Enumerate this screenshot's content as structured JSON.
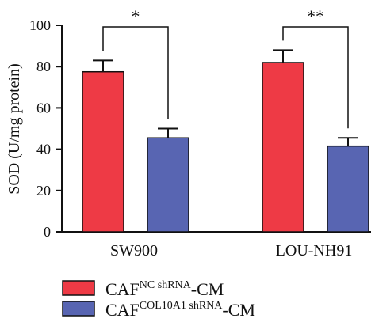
{
  "chart_data": {
    "type": "bar",
    "categories": [
      "SW900",
      "LOU-NH91"
    ],
    "series": [
      {
        "name": "CAF NC shRNA -CM",
        "label_base": "CAF",
        "label_sup": "NC shRNA",
        "label_suffix": "-CM",
        "values": [
          77.5,
          82
        ],
        "errors": [
          5.5,
          6
        ]
      },
      {
        "name": "CAF COL10A1 shRNA -CM",
        "label_base": "CAF",
        "label_sup": "COL10A1 shRNA",
        "label_suffix": "-CM",
        "values": [
          45.5,
          41.5
        ],
        "errors": [
          4.5,
          4
        ]
      }
    ],
    "ylabel": "SOD (U/mg protein)",
    "ylim": [
      0,
      100
    ],
    "yticks": [
      0,
      20,
      40,
      60,
      80,
      100
    ],
    "significance": [
      "*",
      "**"
    ],
    "legend_position": "bottom-left",
    "colors": {
      "series1": "#ee3a45",
      "series2": "#5865b2"
    }
  }
}
